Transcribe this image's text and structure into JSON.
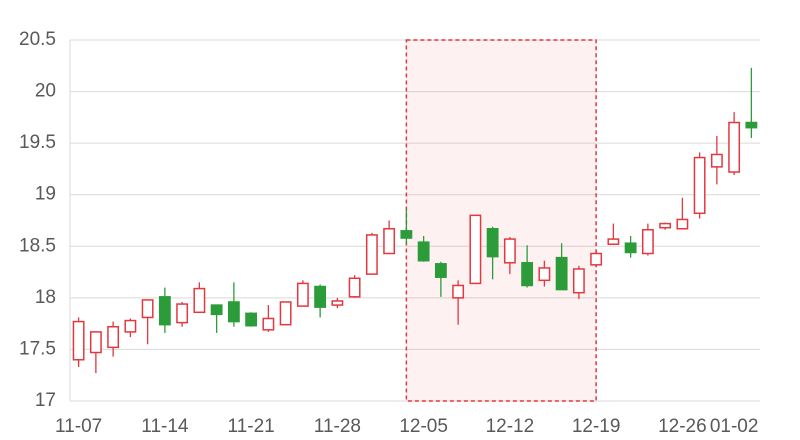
{
  "chart_data": {
    "type": "candlestick",
    "categories": [
      "11-07",
      null,
      null,
      null,
      null,
      "11-14",
      null,
      null,
      null,
      null,
      "11-21",
      null,
      null,
      null,
      null,
      "11-28",
      null,
      null,
      null,
      null,
      "12-05",
      null,
      null,
      null,
      null,
      "12-12",
      null,
      null,
      null,
      null,
      "12-19",
      null,
      null,
      null,
      null,
      "12-26",
      null,
      null,
      "01-02",
      null
    ],
    "open": [
      17.4,
      17.47,
      17.52,
      17.67,
      17.81,
      18.01,
      17.76,
      17.86,
      17.93,
      17.96,
      17.85,
      17.69,
      17.74,
      17.92,
      18.11,
      17.93,
      18.01,
      18.23,
      18.43,
      18.65,
      18.54,
      18.33,
      18.0,
      18.14,
      18.67,
      18.34,
      18.34,
      18.17,
      18.39,
      18.05,
      18.32,
      18.52,
      18.53,
      18.43,
      18.68,
      18.67,
      18.82,
      19.27,
      19.22,
      19.7
    ],
    "high": [
      17.81,
      17.67,
      17.77,
      17.8,
      17.98,
      18.1,
      17.96,
      18.15,
      17.93,
      18.15,
      17.86,
      17.93,
      17.96,
      18.17,
      18.13,
      18.0,
      18.22,
      18.63,
      18.75,
      18.86,
      18.6,
      18.35,
      18.17,
      18.8,
      18.69,
      18.59,
      18.51,
      18.36,
      18.53,
      18.31,
      18.46,
      18.72,
      18.6,
      18.72,
      18.73,
      18.97,
      19.41,
      19.57,
      19.8,
      20.23
    ],
    "low": [
      17.33,
      17.27,
      17.43,
      17.62,
      17.55,
      17.66,
      17.72,
      17.86,
      17.66,
      17.72,
      17.72,
      17.67,
      17.74,
      17.92,
      17.81,
      17.9,
      18.0,
      18.23,
      18.43,
      18.52,
      18.35,
      18.01,
      17.74,
      18.14,
      18.18,
      18.23,
      18.1,
      18.11,
      18.08,
      17.99,
      18.3,
      18.52,
      18.39,
      18.41,
      18.66,
      18.67,
      18.77,
      19.1,
      19.19,
      19.55
    ],
    "close": [
      17.77,
      17.67,
      17.72,
      17.78,
      17.98,
      17.74,
      17.94,
      18.09,
      17.84,
      17.77,
      17.73,
      17.8,
      17.96,
      18.14,
      17.91,
      17.97,
      18.19,
      18.61,
      18.67,
      18.58,
      18.36,
      18.2,
      18.12,
      18.8,
      18.4,
      18.57,
      18.12,
      18.29,
      18.08,
      18.28,
      18.43,
      18.57,
      18.44,
      18.66,
      18.72,
      18.76,
      19.36,
      19.39,
      19.7,
      19.65
    ],
    "up_color": "#e2383f",
    "down_color": "#2c9c3a",
    "ylim": [
      17,
      20.5
    ],
    "yticks": [
      17,
      17.5,
      18,
      18.5,
      19,
      19.5,
      20,
      20.5
    ],
    "grid": true,
    "shaded_region": {
      "start": 19,
      "end": 30,
      "color": "#e2383f"
    }
  }
}
